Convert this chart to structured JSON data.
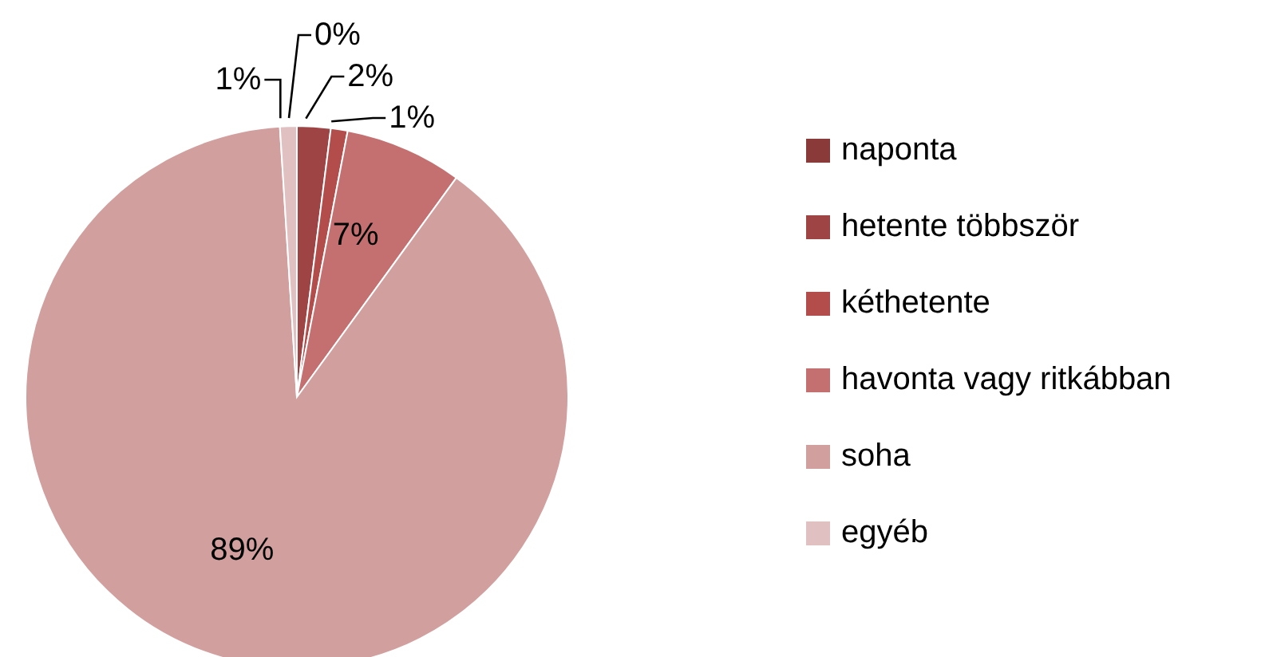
{
  "chart_data": {
    "type": "pie",
    "categories": [
      "naponta",
      "hetente többször",
      "kéthetente",
      "havonta vagy ritkábban",
      "soha",
      "egyéb"
    ],
    "values": [
      0,
      2,
      1,
      7,
      89,
      1
    ],
    "value_labels": [
      "0%",
      "2%",
      "1%",
      "7%",
      "89%",
      "1%"
    ],
    "colors": [
      "#8b3a3a",
      "#9e4444",
      "#b24d4c",
      "#c47070",
      "#d19f9e",
      "#e0c0c1"
    ],
    "legend": "right"
  }
}
